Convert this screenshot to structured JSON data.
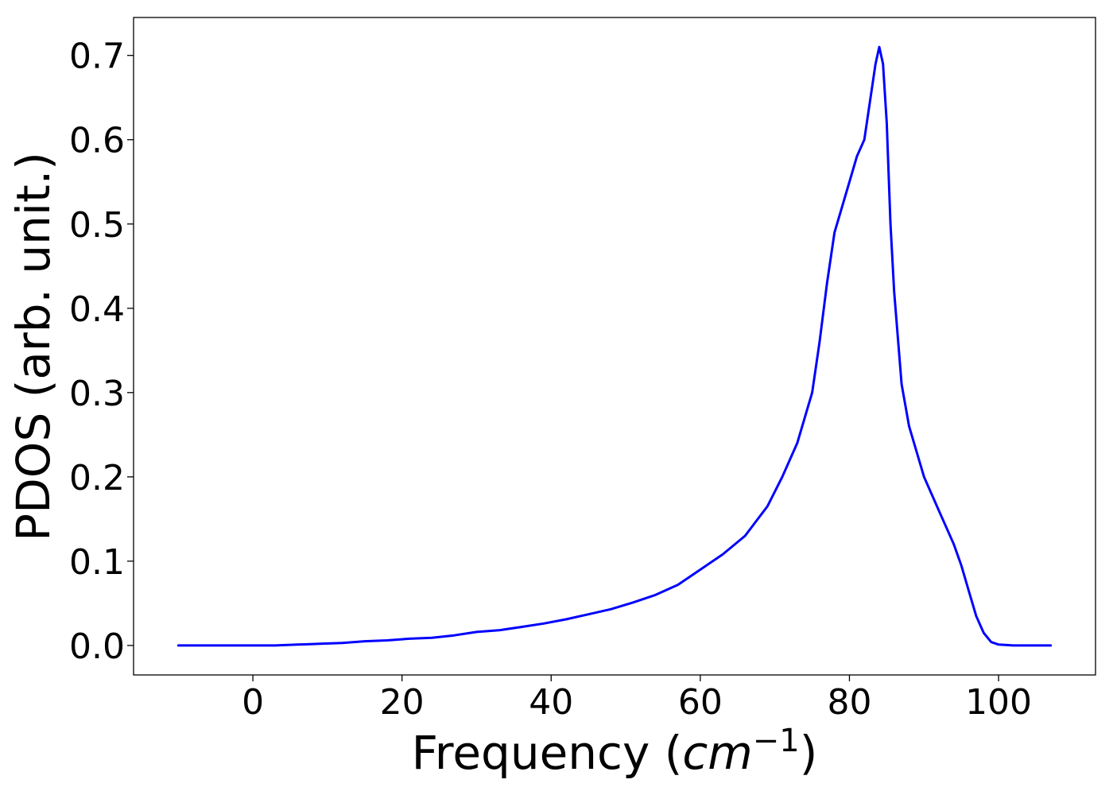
{
  "chart_data": {
    "type": "line",
    "title": "",
    "xlabel": "Frequency",
    "xlabel_unit_base": "cm",
    "xlabel_unit_exp": "−1",
    "ylabel": "PDOS (arb. unit.)",
    "xlim": [
      -16,
      113
    ],
    "ylim": [
      -0.035,
      0.745
    ],
    "xticks": [
      0,
      20,
      40,
      60,
      80,
      100
    ],
    "xtick_labels": [
      "0",
      "20",
      "40",
      "60",
      "80",
      "100"
    ],
    "yticks": [
      0.0,
      0.1,
      0.2,
      0.3,
      0.4,
      0.5,
      0.6,
      0.7
    ],
    "ytick_labels": [
      "0.0",
      "0.1",
      "0.2",
      "0.3",
      "0.4",
      "0.5",
      "0.6",
      "0.7"
    ],
    "grid": false,
    "series": [
      {
        "color": "#0000ff",
        "x": [
          -10,
          0,
          3,
          6,
          9,
          12,
          15,
          18,
          21,
          24,
          27,
          30,
          33,
          36,
          39,
          42,
          45,
          48,
          51,
          54,
          57,
          60,
          63,
          66,
          69,
          71,
          73,
          75,
          76,
          77,
          78,
          79,
          80,
          81,
          82,
          83,
          83.5,
          84,
          84.5,
          85,
          85.5,
          86,
          87,
          88,
          89,
          90,
          92,
          94,
          95,
          96,
          97,
          98,
          99,
          100,
          102,
          107
        ],
        "y": [
          0.0,
          0.0,
          0.0,
          0.001,
          0.002,
          0.003,
          0.005,
          0.006,
          0.008,
          0.009,
          0.012,
          0.016,
          0.018,
          0.022,
          0.026,
          0.031,
          0.037,
          0.043,
          0.051,
          0.06,
          0.072,
          0.09,
          0.108,
          0.13,
          0.165,
          0.2,
          0.24,
          0.3,
          0.36,
          0.43,
          0.49,
          0.52,
          0.55,
          0.58,
          0.6,
          0.66,
          0.69,
          0.71,
          0.69,
          0.62,
          0.5,
          0.42,
          0.31,
          0.26,
          0.23,
          0.2,
          0.16,
          0.12,
          0.095,
          0.065,
          0.035,
          0.015,
          0.004,
          0.001,
          0.0,
          0.0
        ]
      }
    ]
  }
}
